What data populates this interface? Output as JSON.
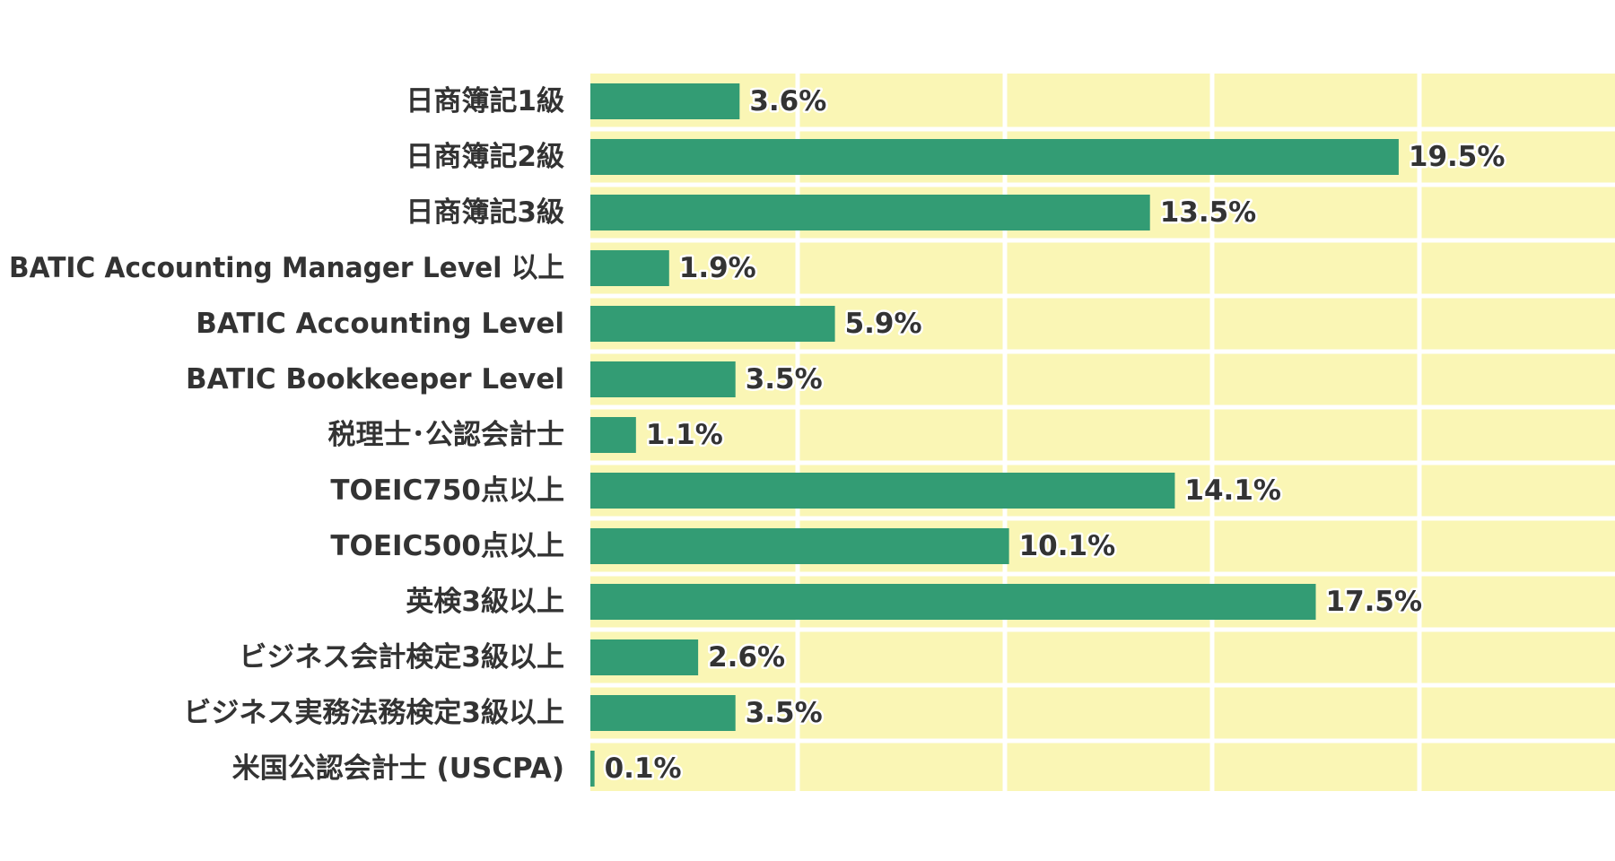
{
  "colors": {
    "bar": "#339c74",
    "plot_background": "#faf6b5",
    "grid": "#ffffff",
    "text": "#333333"
  },
  "chart_data": {
    "type": "bar",
    "orientation": "horizontal",
    "title": "",
    "xlabel": "",
    "ylabel": "",
    "value_suffix": "%",
    "xlim": [
      0,
      25
    ],
    "grid": true,
    "categories": [
      "日商簿記1級",
      "日商簿記2級",
      "日商簿記3級",
      "BATIC Accounting Manager Level 以上",
      "BATIC Accounting Level",
      "BATIC Bookkeeper Level",
      "税理士･公認会計士",
      "TOEIC750点以上",
      "TOEIC500点以上",
      "英検3級以上",
      "ビジネス会計検定3級以上",
      "ビジネス実務法務検定3級以上",
      "米国公認会計士 (USCPA)"
    ],
    "values": [
      3.6,
      19.5,
      13.5,
      1.9,
      5.9,
      3.5,
      1.1,
      14.1,
      10.1,
      17.5,
      2.6,
      3.5,
      0.1
    ],
    "value_labels": [
      "3.6%",
      "19.5%",
      "13.5%",
      "1.9%",
      "5.9%",
      "3.5%",
      "1.1%",
      "14.1%",
      "10.1%",
      "17.5%",
      "2.6%",
      "3.5%",
      "0.1%"
    ]
  }
}
